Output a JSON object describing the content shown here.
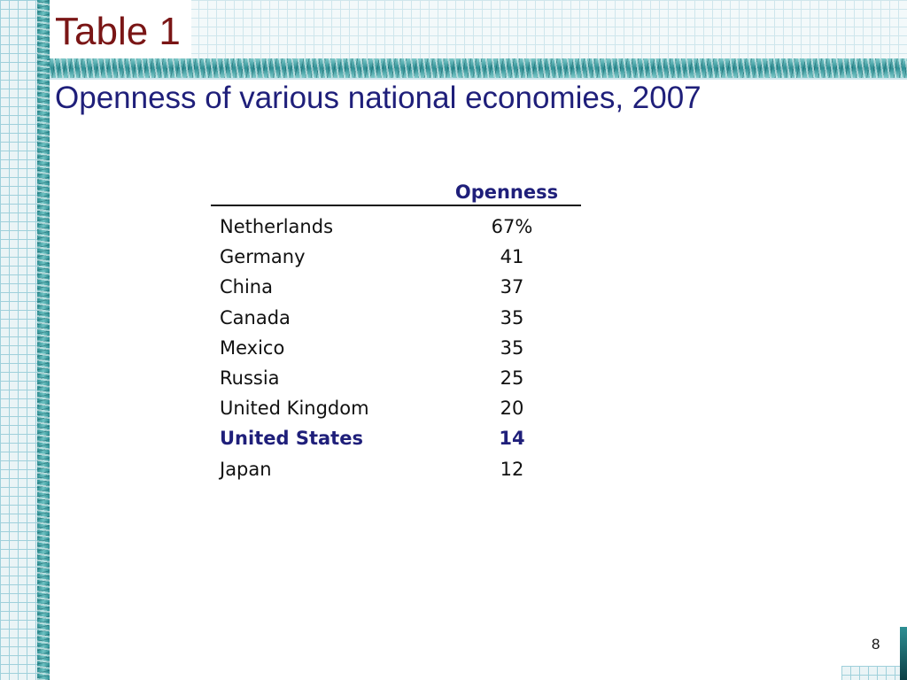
{
  "slide": {
    "title": "Table 1",
    "subtitle": "Openness of various national economies, 2007",
    "page_number": "8"
  },
  "table": {
    "header": {
      "country": "",
      "value": "Openness"
    },
    "rows": [
      {
        "country": "Netherlands",
        "value": "67%"
      },
      {
        "country": "Germany",
        "value": "41"
      },
      {
        "country": "China",
        "value": "37"
      },
      {
        "country": "Canada",
        "value": "35"
      },
      {
        "country": "Mexico",
        "value": "35"
      },
      {
        "country": "Russia",
        "value": "25"
      },
      {
        "country": "United Kingdom",
        "value": "20"
      },
      {
        "country": "United States",
        "value": "14",
        "highlight": true
      },
      {
        "country": "Japan",
        "value": "12"
      }
    ]
  },
  "colors": {
    "title": "#7a1616",
    "subtitle": "#1f1f7a",
    "highlight": "#1f1f7a",
    "accent_band": "#2e8f94"
  }
}
